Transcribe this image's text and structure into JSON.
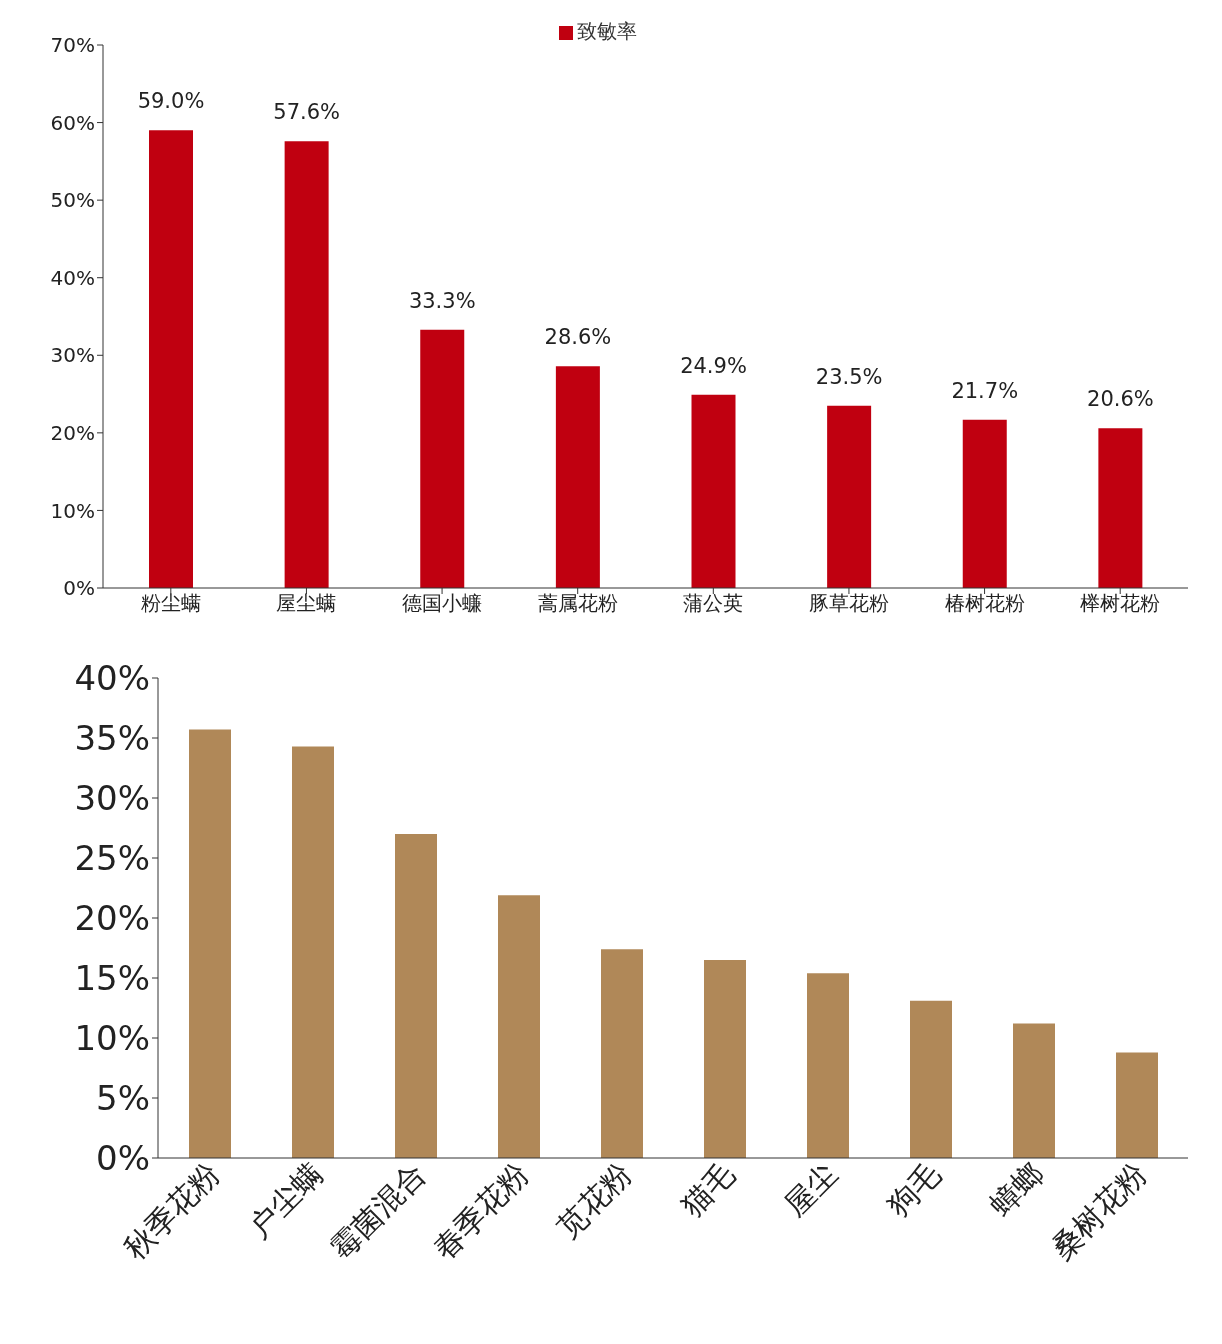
{
  "chart_data": [
    {
      "type": "bar",
      "categories": [
        "粉尘螨",
        "屋尘螨",
        "德国小蠊",
        "蒿属花粉",
        "蒲公英",
        "豚草花粉",
        "椿树花粉",
        "榉树花粉"
      ],
      "series": [
        {
          "name": "致敏率",
          "color": "#c00010",
          "values": [
            59.0,
            57.6,
            33.3,
            28.6,
            24.9,
            23.5,
            21.7,
            20.6
          ],
          "value_labels": [
            "59.0%",
            "57.6%",
            "33.3%",
            "28.6%",
            "24.9%",
            "23.5%",
            "21.7%",
            "20.6%"
          ]
        }
      ],
      "ylim": [
        0,
        70
      ],
      "yticks": [
        {
          "value": 0,
          "label": "0%"
        },
        {
          "value": 10,
          "label": "10%"
        },
        {
          "value": 20,
          "label": "20%"
        },
        {
          "value": 30,
          "label": "30%"
        },
        {
          "value": 40,
          "label": "40%"
        },
        {
          "value": 50,
          "label": "50%"
        },
        {
          "value": 60,
          "label": "60%"
        },
        {
          "value": 70,
          "label": "70%"
        }
      ],
      "legend": "top",
      "grid": false
    },
    {
      "type": "bar",
      "categories": [
        "秋季花粉",
        "户尘螨",
        "霉菌混合",
        "春季花粉",
        "苋花粉",
        "猫毛",
        "屋尘",
        "狗毛",
        "蟑螂",
        "桑树花粉"
      ],
      "series": [
        {
          "color": "#b08858",
          "values": [
            35.7,
            34.3,
            27.0,
            21.9,
            17.4,
            16.5,
            15.4,
            13.1,
            11.2,
            8.8
          ]
        }
      ],
      "ylim": [
        0,
        40
      ],
      "yticks": [
        {
          "value": 0,
          "label": "0%"
        },
        {
          "value": 5,
          "label": "5%"
        },
        {
          "value": 10,
          "label": "10%"
        },
        {
          "value": 15,
          "label": "15%"
        },
        {
          "value": 20,
          "label": "20%"
        },
        {
          "value": 25,
          "label": "25%"
        },
        {
          "value": 30,
          "label": "30%"
        },
        {
          "value": 35,
          "label": "35%"
        },
        {
          "value": 40,
          "label": "40%"
        }
      ],
      "legend": false,
      "grid": false
    }
  ]
}
